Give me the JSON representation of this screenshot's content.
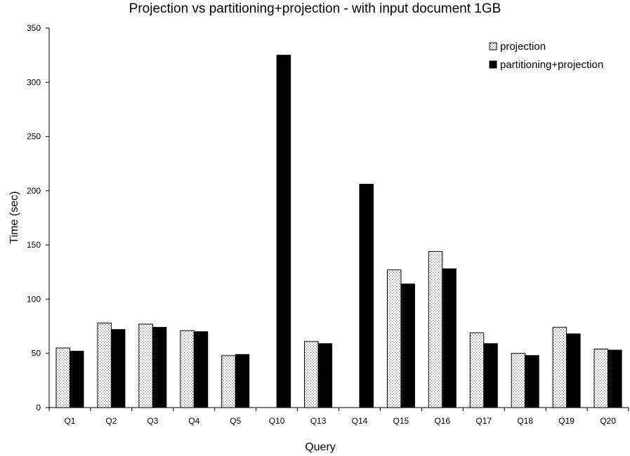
{
  "chart_data": {
    "type": "bar",
    "title": "Projection vs partitioning+projection - with input document 1GB",
    "xlabel": "Query",
    "ylabel": "Time (sec)",
    "ylim": [
      0,
      350
    ],
    "yticks": [
      0,
      50,
      100,
      150,
      200,
      250,
      300,
      350
    ],
    "grid": false,
    "legend_position": "top-right",
    "categories": [
      "Q1",
      "Q2",
      "Q3",
      "Q4",
      "Q5",
      "Q10",
      "Q13",
      "Q14",
      "Q15",
      "Q16",
      "Q17",
      "Q18",
      "Q19",
      "Q20"
    ],
    "series": [
      {
        "name": "projection",
        "pattern": "dotted",
        "color": "#ffffff",
        "values": [
          55,
          78,
          77,
          71,
          48,
          null,
          61,
          null,
          127,
          144,
          69,
          50,
          74,
          54
        ]
      },
      {
        "name": "partitioning+projection",
        "pattern": "solid",
        "color": "#000000",
        "values": [
          52,
          72,
          74,
          70,
          49,
          325,
          59,
          206,
          114,
          128,
          59,
          48,
          68,
          53
        ]
      }
    ]
  }
}
